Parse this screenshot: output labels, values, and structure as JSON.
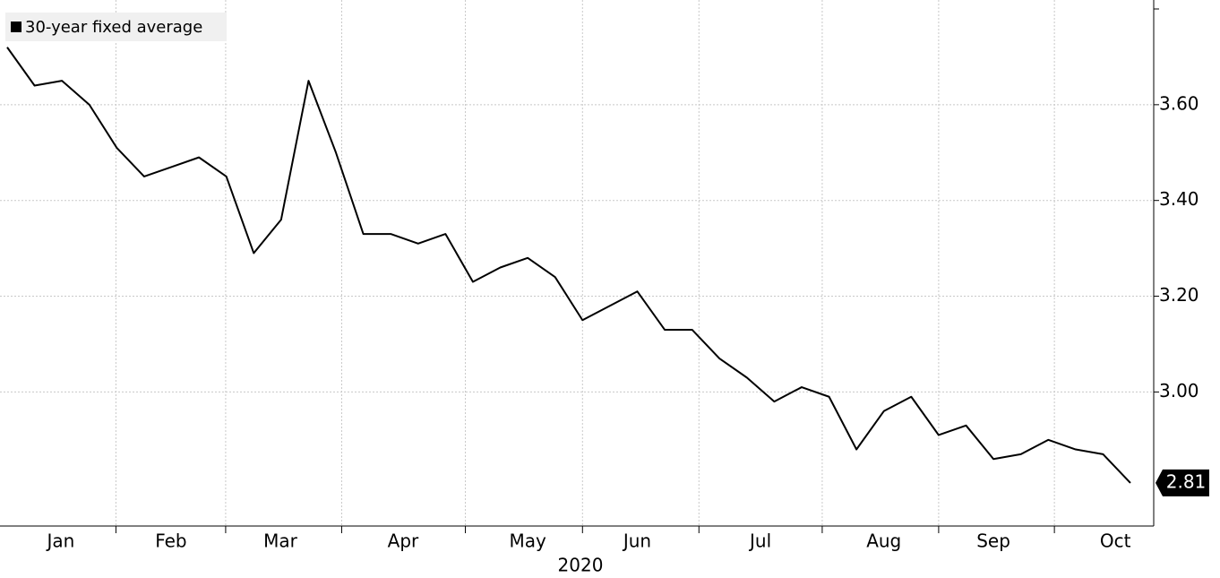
{
  "chart_data": {
    "type": "line",
    "xlabel": "2020",
    "xlim": [
      0,
      41
    ],
    "xticks": [
      {
        "value": 1.96,
        "label": "Jan"
      },
      {
        "value": 5.98,
        "label": "Feb"
      },
      {
        "value": 9.97,
        "label": "Mar"
      },
      {
        "value": 14.45,
        "label": "Apr"
      },
      {
        "value": 19.0,
        "label": "May"
      },
      {
        "value": 23.0,
        "label": "Jun"
      },
      {
        "value": 27.5,
        "label": "Jul"
      },
      {
        "value": 32.0,
        "label": "Aug"
      },
      {
        "value": 36.0,
        "label": "Sep"
      },
      {
        "value": 40.45,
        "label": "Oct"
      }
    ],
    "ylim": [
      2.72,
      3.8
    ],
    "yticks": [
      {
        "value": 3.0,
        "label": "3.00"
      },
      {
        "value": 3.2,
        "label": "3.20"
      },
      {
        "value": 3.4,
        "label": "3.40"
      },
      {
        "value": 3.6,
        "label": "3.60"
      }
    ],
    "grid": true,
    "legend": "top-left",
    "series": [
      {
        "name": "30-year fixed average",
        "color": "#000000",
        "values": [
          3.72,
          3.64,
          3.65,
          3.6,
          3.51,
          3.45,
          3.47,
          3.49,
          3.45,
          3.29,
          3.36,
          3.65,
          3.5,
          3.33,
          3.33,
          3.31,
          3.33,
          3.23,
          3.26,
          3.28,
          3.24,
          3.15,
          3.18,
          3.21,
          3.13,
          3.13,
          3.07,
          3.03,
          2.98,
          3.01,
          2.99,
          2.88,
          2.96,
          2.99,
          2.91,
          2.93,
          2.86,
          2.87,
          2.9,
          2.88,
          2.87,
          2.81
        ]
      }
    ]
  }
}
